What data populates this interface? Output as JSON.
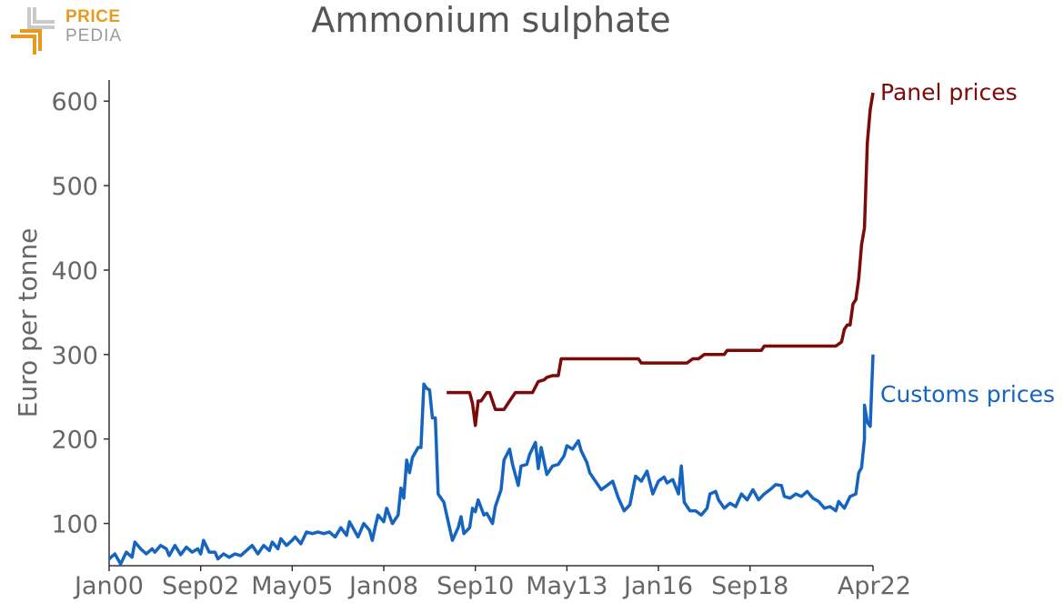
{
  "brand": {
    "line1": "PRICE",
    "line2": "PEDIA"
  },
  "colors": {
    "panel": "#7b0a0a",
    "customs": "#1565c0",
    "axis": "#555555",
    "text": "#666666",
    "logo_orange": "#e69b1e",
    "logo_gray": "#9a9a9a"
  },
  "chart_data": {
    "type": "line",
    "title": "Ammonium sulphate",
    "xlabel": "",
    "ylabel": "Euro per tonne",
    "x_ticks": [
      "Jan00",
      "Sep02",
      "May05",
      "Jan08",
      "Sep10",
      "May13",
      "Jan16",
      "Sep18",
      "Apr22"
    ],
    "y_ticks": [
      100,
      200,
      300,
      400,
      500,
      600
    ],
    "xlim": [
      "2000-01",
      "2022-04"
    ],
    "ylim": [
      50,
      625
    ],
    "grid": false,
    "series": [
      {
        "name": "Panel prices",
        "color": "#7b0a0a",
        "points": [
          [
            "2009-11",
            255
          ],
          [
            "2010-01",
            255
          ],
          [
            "2010-04",
            255
          ],
          [
            "2010-07",
            255
          ],
          [
            "2010-08",
            242
          ],
          [
            "2010-09",
            216
          ],
          [
            "2010-10",
            245
          ],
          [
            "2010-11",
            245
          ],
          [
            "2011-01",
            255
          ],
          [
            "2011-02",
            255
          ],
          [
            "2011-04",
            235
          ],
          [
            "2011-07",
            235
          ],
          [
            "2011-09",
            245
          ],
          [
            "2011-11",
            255
          ],
          [
            "2012-02",
            255
          ],
          [
            "2012-05",
            255
          ],
          [
            "2012-07",
            268
          ],
          [
            "2012-09",
            270
          ],
          [
            "2012-10",
            273
          ],
          [
            "2012-12",
            275
          ],
          [
            "2013-02",
            275
          ],
          [
            "2013-03",
            295
          ],
          [
            "2014-01",
            295
          ],
          [
            "2015-01",
            295
          ],
          [
            "2015-06",
            295
          ],
          [
            "2015-07",
            290
          ],
          [
            "2016-06",
            290
          ],
          [
            "2016-11",
            290
          ],
          [
            "2017-01",
            295
          ],
          [
            "2017-03",
            295
          ],
          [
            "2017-05",
            300
          ],
          [
            "2017-12",
            300
          ],
          [
            "2018-01",
            305
          ],
          [
            "2018-07",
            305
          ],
          [
            "2019-01",
            305
          ],
          [
            "2019-02",
            310
          ],
          [
            "2020-01",
            310
          ],
          [
            "2021-01",
            310
          ],
          [
            "2021-03",
            310
          ],
          [
            "2021-05",
            315
          ],
          [
            "2021-06",
            330
          ],
          [
            "2021-07",
            335
          ],
          [
            "2021-08",
            335
          ],
          [
            "2021-09",
            360
          ],
          [
            "2021-10",
            365
          ],
          [
            "2021-11",
            390
          ],
          [
            "2021-12",
            430
          ],
          [
            "2022-01",
            450
          ],
          [
            "2022-02",
            550
          ],
          [
            "2022-03",
            590
          ],
          [
            "2022-04",
            610
          ]
        ]
      },
      {
        "name": "Customs prices",
        "color": "#1565c0",
        "points": [
          [
            "2000-01",
            58
          ],
          [
            "2000-03",
            64
          ],
          [
            "2000-05",
            52
          ],
          [
            "2000-07",
            66
          ],
          [
            "2000-09",
            60
          ],
          [
            "2000-10",
            78
          ],
          [
            "2000-12",
            70
          ],
          [
            "2001-02",
            64
          ],
          [
            "2001-04",
            70
          ],
          [
            "2001-05",
            66
          ],
          [
            "2001-07",
            74
          ],
          [
            "2001-09",
            70
          ],
          [
            "2001-10",
            62
          ],
          [
            "2001-12",
            74
          ],
          [
            "2002-02",
            63
          ],
          [
            "2002-04",
            72
          ],
          [
            "2002-06",
            66
          ],
          [
            "2002-08",
            70
          ],
          [
            "2002-09",
            64
          ],
          [
            "2002-10",
            80
          ],
          [
            "2002-12",
            66
          ],
          [
            "2003-02",
            66
          ],
          [
            "2003-03",
            58
          ],
          [
            "2003-05",
            64
          ],
          [
            "2003-07",
            60
          ],
          [
            "2003-09",
            64
          ],
          [
            "2003-11",
            62
          ],
          [
            "2004-01",
            68
          ],
          [
            "2004-03",
            74
          ],
          [
            "2004-05",
            64
          ],
          [
            "2004-07",
            74
          ],
          [
            "2004-09",
            68
          ],
          [
            "2004-10",
            78
          ],
          [
            "2004-12",
            70
          ],
          [
            "2005-01",
            82
          ],
          [
            "2005-03",
            74
          ],
          [
            "2005-05",
            80
          ],
          [
            "2005-06",
            84
          ],
          [
            "2005-08",
            76
          ],
          [
            "2005-10",
            90
          ],
          [
            "2005-12",
            88
          ],
          [
            "2006-02",
            90
          ],
          [
            "2006-04",
            88
          ],
          [
            "2006-06",
            90
          ],
          [
            "2006-08",
            84
          ],
          [
            "2006-10",
            95
          ],
          [
            "2006-12",
            86
          ],
          [
            "2007-01",
            102
          ],
          [
            "2007-03",
            90
          ],
          [
            "2007-04",
            84
          ],
          [
            "2007-06",
            100
          ],
          [
            "2007-08",
            92
          ],
          [
            "2007-09",
            80
          ],
          [
            "2007-10",
            96
          ],
          [
            "2007-11",
            110
          ],
          [
            "2008-01",
            102
          ],
          [
            "2008-02",
            118
          ],
          [
            "2008-04",
            100
          ],
          [
            "2008-06",
            110
          ],
          [
            "2008-07",
            142
          ],
          [
            "2008-08",
            130
          ],
          [
            "2008-09",
            175
          ],
          [
            "2008-10",
            160
          ],
          [
            "2008-11",
            178
          ],
          [
            "2009-01",
            190
          ],
          [
            "2009-02",
            190
          ],
          [
            "2009-03",
            265
          ],
          [
            "2009-04",
            260
          ],
          [
            "2009-05",
            258
          ],
          [
            "2009-06",
            225
          ],
          [
            "2009-07",
            225
          ],
          [
            "2009-08",
            135
          ],
          [
            "2009-10",
            125
          ],
          [
            "2009-11",
            110
          ],
          [
            "2010-01",
            80
          ],
          [
            "2010-03",
            95
          ],
          [
            "2010-04",
            108
          ],
          [
            "2010-05",
            88
          ],
          [
            "2010-07",
            95
          ],
          [
            "2010-08",
            118
          ],
          [
            "2010-09",
            114
          ],
          [
            "2010-10",
            128
          ],
          [
            "2010-12",
            110
          ],
          [
            "2011-01",
            112
          ],
          [
            "2011-03",
            100
          ],
          [
            "2011-04",
            120
          ],
          [
            "2011-06",
            140
          ],
          [
            "2011-07",
            175
          ],
          [
            "2011-09",
            188
          ],
          [
            "2011-10",
            170
          ],
          [
            "2011-12",
            145
          ],
          [
            "2012-01",
            168
          ],
          [
            "2012-03",
            170
          ],
          [
            "2012-04",
            182
          ],
          [
            "2012-06",
            196
          ],
          [
            "2012-07",
            165
          ],
          [
            "2012-08",
            190
          ],
          [
            "2012-10",
            158
          ],
          [
            "2012-12",
            168
          ],
          [
            "2013-02",
            170
          ],
          [
            "2013-04",
            180
          ],
          [
            "2013-05",
            192
          ],
          [
            "2013-07",
            188
          ],
          [
            "2013-09",
            198
          ],
          [
            "2013-10",
            186
          ],
          [
            "2013-12",
            172
          ],
          [
            "2014-01",
            160
          ],
          [
            "2014-03",
            150
          ],
          [
            "2014-05",
            140
          ],
          [
            "2014-07",
            145
          ],
          [
            "2014-09",
            150
          ],
          [
            "2014-11",
            130
          ],
          [
            "2015-01",
            115
          ],
          [
            "2015-03",
            122
          ],
          [
            "2015-05",
            156
          ],
          [
            "2015-07",
            150
          ],
          [
            "2015-09",
            162
          ],
          [
            "2015-11",
            135
          ],
          [
            "2016-01",
            150
          ],
          [
            "2016-03",
            155
          ],
          [
            "2016-04",
            148
          ],
          [
            "2016-06",
            152
          ],
          [
            "2016-08",
            135
          ],
          [
            "2016-09",
            168
          ],
          [
            "2016-10",
            125
          ],
          [
            "2016-12",
            115
          ],
          [
            "2017-02",
            115
          ],
          [
            "2017-04",
            110
          ],
          [
            "2017-06",
            118
          ],
          [
            "2017-07",
            135
          ],
          [
            "2017-09",
            138
          ],
          [
            "2017-10",
            128
          ],
          [
            "2017-12",
            118
          ],
          [
            "2018-02",
            124
          ],
          [
            "2018-04",
            120
          ],
          [
            "2018-06",
            135
          ],
          [
            "2018-08",
            128
          ],
          [
            "2018-10",
            140
          ],
          [
            "2018-12",
            128
          ],
          [
            "2019-02",
            135
          ],
          [
            "2019-04",
            140
          ],
          [
            "2019-06",
            146
          ],
          [
            "2019-08",
            145
          ],
          [
            "2019-09",
            132
          ],
          [
            "2019-11",
            130
          ],
          [
            "2020-01",
            135
          ],
          [
            "2020-03",
            132
          ],
          [
            "2020-05",
            138
          ],
          [
            "2020-07",
            130
          ],
          [
            "2020-09",
            126
          ],
          [
            "2020-11",
            118
          ],
          [
            "2021-01",
            120
          ],
          [
            "2021-03",
            115
          ],
          [
            "2021-04",
            126
          ],
          [
            "2021-06",
            118
          ],
          [
            "2021-08",
            132
          ],
          [
            "2021-10",
            135
          ],
          [
            "2021-11",
            160
          ],
          [
            "2021-12",
            166
          ],
          [
            "2022-01",
            200
          ],
          [
            "2022-01",
            240
          ],
          [
            "2022-02",
            220
          ],
          [
            "2022-03",
            215
          ],
          [
            "2022-04",
            300
          ]
        ]
      }
    ]
  }
}
